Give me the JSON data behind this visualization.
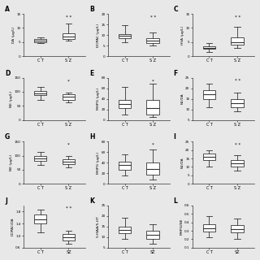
{
  "panels": [
    {
      "label": "A",
      "ylabel": "DA (μg/L)",
      "ylim": [
        0,
        15
      ],
      "yticks": [
        0,
        5,
        10,
        15
      ],
      "groups": [
        "C T",
        "S Z"
      ],
      "CT": {
        "median": 5.5,
        "q1": 5.0,
        "q3": 6.0,
        "whislo": 4.5,
        "whishi": 6.5
      },
      "SZ": {
        "median": 7.0,
        "q1": 6.0,
        "q3": 8.0,
        "whislo": 5.5,
        "whishi": 11.5
      },
      "sig": "* *",
      "sig_group": "SZ"
    },
    {
      "label": "B",
      "ylabel": "DOPAC (μg/L)",
      "ylim": [
        0,
        20
      ],
      "yticks": [
        0,
        5,
        10,
        15,
        20
      ],
      "groups": [
        "C T",
        "S Z"
      ],
      "CT": {
        "median": 9.5,
        "q1": 8.5,
        "q3": 10.5,
        "whislo": 6.5,
        "whishi": 14.5
      },
      "SZ": {
        "median": 7.5,
        "q1": 6.0,
        "q3": 8.5,
        "whislo": 5.0,
        "whishi": 11.0
      },
      "sig": "* *",
      "sig_group": "SZ"
    },
    {
      "label": "C",
      "ylabel": "HVA (μg/L)",
      "ylim": [
        0,
        15
      ],
      "yticks": [
        0,
        5,
        10,
        15
      ],
      "groups": [
        "C T",
        "S Z"
      ],
      "CT": {
        "median": 3.0,
        "q1": 2.5,
        "q3": 3.5,
        "whislo": 1.5,
        "whishi": 4.5
      },
      "SZ": {
        "median": 5.0,
        "q1": 4.0,
        "q3": 6.5,
        "whislo": 3.0,
        "whishi": 10.5
      },
      "sig": "* *",
      "sig_group": "SZ"
    },
    {
      "label": "D",
      "ylabel": "NE (μg/L)",
      "ylim": [
        0,
        150
      ],
      "yticks": [
        0,
        50,
        100,
        150
      ],
      "groups": [
        "C T",
        "S Z"
      ],
      "CT": {
        "median": 95.0,
        "q1": 87.0,
        "q3": 102.0,
        "whislo": 72.0,
        "whishi": 118.0
      },
      "SZ": {
        "median": 82.0,
        "q1": 72.0,
        "q3": 90.0,
        "whislo": 62.0,
        "whishi": 98.0
      },
      "sig": "*",
      "sig_group": "SZ"
    },
    {
      "label": "E",
      "ylabel": "MHPG (μg/L)",
      "ylim": [
        0,
        80
      ],
      "yticks": [
        0,
        20,
        40,
        60,
        80
      ],
      "groups": [
        "C T",
        "S Z"
      ],
      "CT": {
        "median": 30.0,
        "q1": 22.0,
        "q3": 38.0,
        "whislo": 10.0,
        "whishi": 62.0
      },
      "SZ": {
        "median": 22.0,
        "q1": 10.0,
        "q3": 38.0,
        "whislo": 5.0,
        "whishi": 68.0
      },
      "sig": "*",
      "sig_group": "SZ"
    },
    {
      "label": "F",
      "ylabel": "NE/DA",
      "ylim": [
        5,
        25
      ],
      "yticks": [
        5,
        10,
        15,
        20,
        25
      ],
      "groups": [
        "C T",
        "S Z"
      ],
      "CT": {
        "median": 17.0,
        "q1": 15.0,
        "q3": 19.0,
        "whislo": 11.0,
        "whishi": 22.0
      },
      "SZ": {
        "median": 13.0,
        "q1": 11.0,
        "q3": 15.0,
        "whislo": 9.0,
        "whishi": 18.0
      },
      "sig": "* *",
      "sig_group": "SZ"
    },
    {
      "label": "G",
      "ylabel": "NE (μg/L)",
      "ylim": [
        0,
        150
      ],
      "yticks": [
        0,
        50,
        100,
        150
      ],
      "groups": [
        "C T",
        "S Z"
      ],
      "CT": {
        "median": 90.0,
        "q1": 82.0,
        "q3": 98.0,
        "whislo": 68.0,
        "whishi": 112.0
      },
      "SZ": {
        "median": 80.0,
        "q1": 70.0,
        "q3": 88.0,
        "whislo": 58.0,
        "whishi": 100.0
      },
      "sig": "*",
      "sig_group": "SZ"
    },
    {
      "label": "H",
      "ylabel": "MHPG (μg/L)",
      "ylim": [
        0,
        80
      ],
      "yticks": [
        0,
        20,
        40,
        60,
        80
      ],
      "groups": [
        "C T",
        "S Z"
      ],
      "CT": {
        "median": 35.0,
        "q1": 26.0,
        "q3": 42.0,
        "whislo": 15.0,
        "whishi": 55.0
      },
      "SZ": {
        "median": 28.0,
        "q1": 18.0,
        "q3": 40.0,
        "whislo": 8.0,
        "whishi": 65.0
      },
      "sig": "*",
      "sig_group": "SZ"
    },
    {
      "label": "I",
      "ylabel": "NE/DA",
      "ylim": [
        0,
        25
      ],
      "yticks": [
        0,
        5,
        10,
        15,
        20,
        25
      ],
      "groups": [
        "C T",
        "S Z"
      ],
      "CT": {
        "median": 16.0,
        "q1": 14.0,
        "q3": 18.0,
        "whislo": 10.0,
        "whishi": 20.0
      },
      "SZ": {
        "median": 12.0,
        "q1": 10.0,
        "q3": 14.0,
        "whislo": 8.0,
        "whishi": 17.0
      },
      "sig": "* *",
      "sig_group": "SZ"
    },
    {
      "label": "J",
      "ylabel": "DOPAC/DA",
      "ylim": [
        0.6,
        2.0
      ],
      "yticks": [
        0.6,
        1.0,
        1.4,
        1.8
      ],
      "groups": [
        "C T",
        "SZ"
      ],
      "CT": {
        "median": 1.55,
        "q1": 1.4,
        "q3": 1.7,
        "whislo": 1.1,
        "whishi": 1.85
      },
      "SZ": {
        "median": 0.95,
        "q1": 0.85,
        "q3": 1.05,
        "whislo": 0.72,
        "whishi": 1.15
      },
      "sig": "* *",
      "sig_group": "SZ"
    },
    {
      "label": "K",
      "ylabel": "5-HIAA/5-HT",
      "ylim": [
        5,
        25
      ],
      "yticks": [
        5,
        10,
        15,
        20,
        25
      ],
      "groups": [
        "C T",
        "SZ"
      ],
      "CT": {
        "median": 13.5,
        "q1": 12.0,
        "q3": 15.0,
        "whislo": 9.0,
        "whishi": 19.0
      },
      "SZ": {
        "median": 11.0,
        "q1": 9.0,
        "q3": 13.0,
        "whislo": 7.0,
        "whishi": 16.0
      },
      "sig": "",
      "sig_group": "SZ"
    },
    {
      "label": "L",
      "ylabel": "MHPG/NE",
      "ylim": [
        0.1,
        0.6
      ],
      "yticks": [
        0.1,
        0.2,
        0.3,
        0.4,
        0.5,
        0.6
      ],
      "groups": [
        "C T",
        "SZ"
      ],
      "CT": {
        "median": 0.33,
        "q1": 0.29,
        "q3": 0.38,
        "whislo": 0.22,
        "whishi": 0.47
      },
      "SZ": {
        "median": 0.32,
        "q1": 0.28,
        "q3": 0.37,
        "whislo": 0.2,
        "whishi": 0.44
      },
      "sig": "",
      "sig_group": "SZ"
    }
  ],
  "box_facecolor": "white",
  "box_edgecolor": "#333333",
  "median_color": "#333333",
  "whisker_color": "#333333",
  "cap_color": "#333333",
  "fig_facecolor": "#e8e8e8",
  "ax_facecolor": "#e8e8e8"
}
